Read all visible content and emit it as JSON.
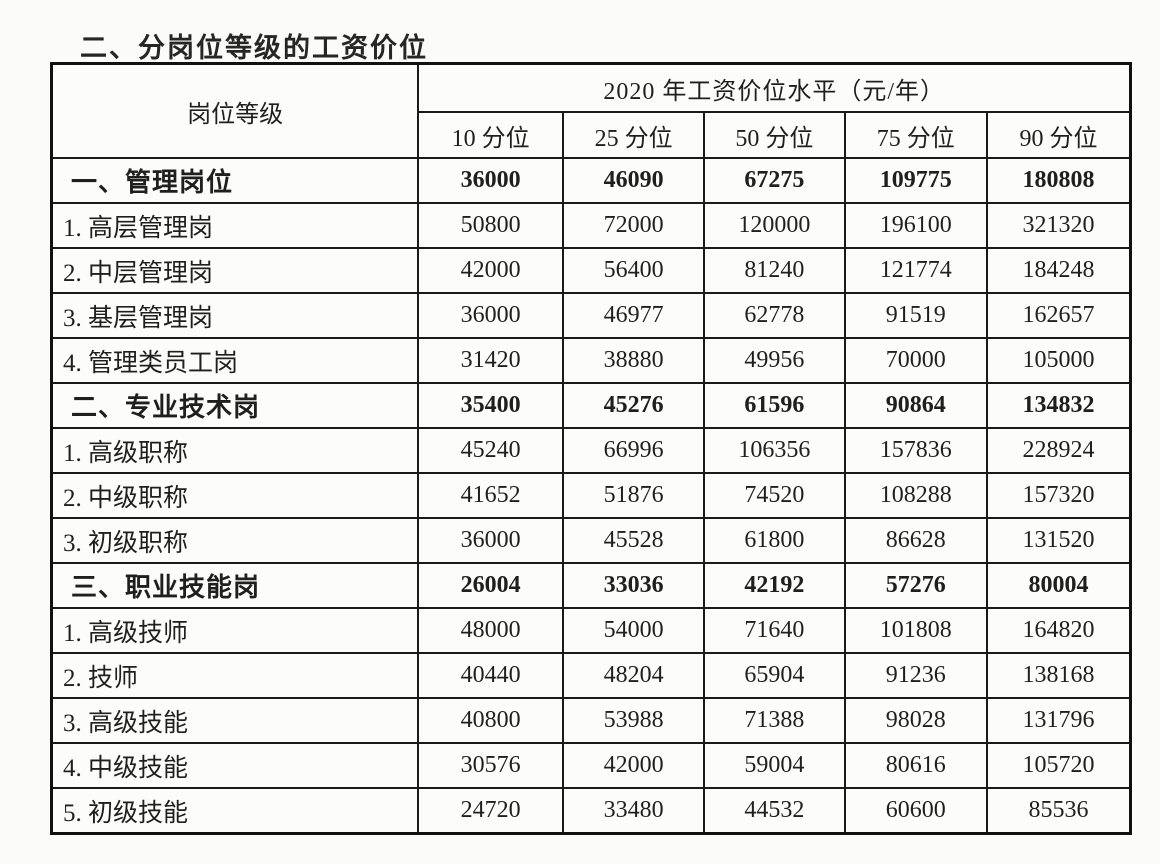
{
  "page": {
    "title": "二、分岗位等级的工资价位"
  },
  "table": {
    "corner_header": "岗位等级",
    "year_header": "2020 年工资价位水平（元/年）",
    "percentile_headers": [
      "10 分位",
      "25 分位",
      "50 分位",
      "75 分位",
      "90 分位"
    ],
    "rows": [
      {
        "label": "一、管理岗位",
        "bold": true,
        "values": [
          "36000",
          "46090",
          "67275",
          "109775",
          "180808"
        ]
      },
      {
        "label": "1. 高层管理岗",
        "bold": false,
        "values": [
          "50800",
          "72000",
          "120000",
          "196100",
          "321320"
        ]
      },
      {
        "label": "2. 中层管理岗",
        "bold": false,
        "values": [
          "42000",
          "56400",
          "81240",
          "121774",
          "184248"
        ]
      },
      {
        "label": "3. 基层管理岗",
        "bold": false,
        "values": [
          "36000",
          "46977",
          "62778",
          "91519",
          "162657"
        ]
      },
      {
        "label": "4. 管理类员工岗",
        "bold": false,
        "values": [
          "31420",
          "38880",
          "49956",
          "70000",
          "105000"
        ]
      },
      {
        "label": "二、专业技术岗",
        "bold": true,
        "values": [
          "35400",
          "45276",
          "61596",
          "90864",
          "134832"
        ]
      },
      {
        "label": "1. 高级职称",
        "bold": false,
        "values": [
          "45240",
          "66996",
          "106356",
          "157836",
          "228924"
        ]
      },
      {
        "label": "2. 中级职称",
        "bold": false,
        "values": [
          "41652",
          "51876",
          "74520",
          "108288",
          "157320"
        ]
      },
      {
        "label": "3. 初级职称",
        "bold": false,
        "values": [
          "36000",
          "45528",
          "61800",
          "86628",
          "131520"
        ]
      },
      {
        "label": "三、职业技能岗",
        "bold": true,
        "values": [
          "26004",
          "33036",
          "42192",
          "57276",
          "80004"
        ]
      },
      {
        "label": "1. 高级技师",
        "bold": false,
        "values": [
          "48000",
          "54000",
          "71640",
          "101808",
          "164820"
        ]
      },
      {
        "label": "2. 技师",
        "bold": false,
        "values": [
          "40440",
          "48204",
          "65904",
          "91236",
          "138168"
        ]
      },
      {
        "label": "3. 高级技能",
        "bold": false,
        "values": [
          "40800",
          "53988",
          "71388",
          "98028",
          "131796"
        ]
      },
      {
        "label": "4. 中级技能",
        "bold": false,
        "values": [
          "30576",
          "42000",
          "59004",
          "80616",
          "105720"
        ]
      },
      {
        "label": "5. 初级技能",
        "bold": false,
        "values": [
          "24720",
          "33480",
          "44532",
          "60600",
          "85536"
        ]
      }
    ]
  },
  "colors": {
    "text": "#1f1f1f",
    "border": "#1a1a1a",
    "background": "#fbfbfa"
  }
}
